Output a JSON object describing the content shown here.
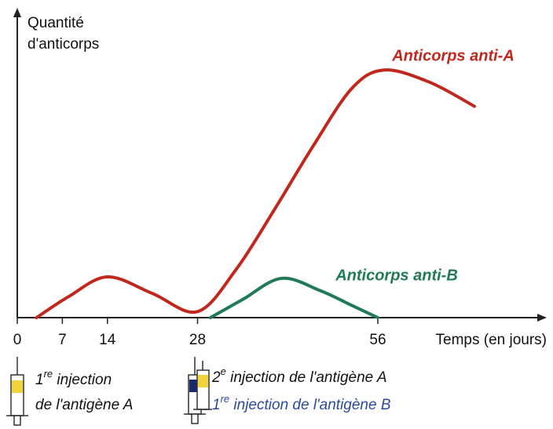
{
  "chart_data": {
    "type": "line",
    "y_label_lines": [
      "Quantité",
      "d'anticorps"
    ],
    "x_label": "Temps (en jours)",
    "xlim": [
      0,
      81.5
    ],
    "xticks": [
      0,
      7,
      14,
      28,
      56
    ],
    "ylim": [
      0,
      100
    ],
    "series": [
      {
        "name": "Anticorps anti-A",
        "color": "#c0281e",
        "x": [
          3,
          8,
          14,
          21,
          28,
          34,
          40,
          46,
          52,
          57,
          64,
          71
        ],
        "y": [
          0,
          7,
          13.5,
          8,
          2,
          16,
          36,
          57,
          76,
          82,
          78,
          70
        ]
      },
      {
        "name": "Anticorps anti-B",
        "color": "#1f7a55",
        "x": [
          30,
          35,
          41,
          47,
          52,
          56
        ],
        "y": [
          0,
          6,
          13,
          9,
          4,
          0
        ]
      }
    ],
    "annotations": [
      {
        "lines": [
          {
            "ordinal": "1",
            "sup": "re",
            "rest": " injection",
            "color": "#111111"
          },
          {
            "text": "de l'antigène A",
            "color": "#111111"
          }
        ]
      },
      {
        "lines": [
          {
            "ordinal": "2",
            "sup": "e",
            "rest": " injection de l'antigène A",
            "color": "#111111"
          },
          {
            "ordinal": "1",
            "sup": "re",
            "rest": " injection de l'antigène B",
            "color": "#2a4aa0"
          }
        ]
      }
    ]
  }
}
